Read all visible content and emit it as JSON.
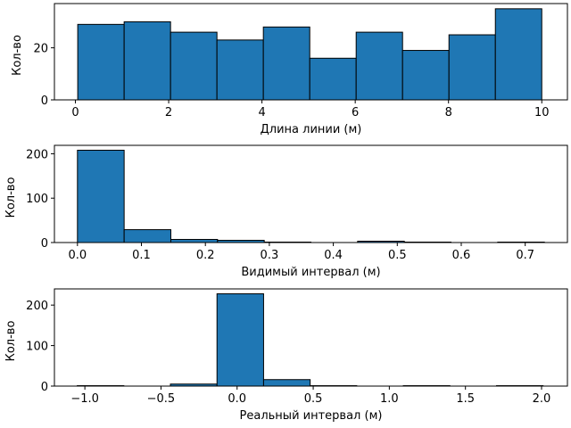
{
  "colors": {
    "bar": "#1f77b4",
    "edge": "#000000",
    "background": "#ffffff"
  },
  "chart_data": [
    {
      "type": "bar",
      "subtype": "histogram",
      "xlabel": "Длина линии (м)",
      "ylabel": "Кол-во",
      "xlim": [
        -0.45,
        10.55
      ],
      "ylim": [
        0,
        37
      ],
      "xticks": [
        0,
        2,
        4,
        6,
        8,
        10
      ],
      "xtick_labels": [
        "0",
        "2",
        "4",
        "6",
        "8",
        "10"
      ],
      "yticks": [
        0,
        20
      ],
      "ytick_labels": [
        "0",
        "20"
      ],
      "bin_edges": [
        0.05,
        1.045,
        2.04,
        3.035,
        4.03,
        5.025,
        6.02,
        7.015,
        8.01,
        9.005,
        10.0
      ],
      "values": [
        29,
        30,
        26,
        23,
        28,
        16,
        26,
        19,
        25,
        35
      ]
    },
    {
      "type": "bar",
      "subtype": "histogram",
      "xlabel": "Видимый интервал (м)",
      "ylabel": "Кол-во",
      "xlim": [
        -0.036,
        0.766
      ],
      "ylim": [
        0,
        219
      ],
      "xticks": [
        0.0,
        0.1,
        0.2,
        0.3,
        0.4,
        0.5,
        0.6,
        0.7
      ],
      "xtick_labels": [
        "0.0",
        "0.1",
        "0.2",
        "0.3",
        "0.4",
        "0.5",
        "0.6",
        "0.7"
      ],
      "yticks": [
        0,
        100,
        200
      ],
      "ytick_labels": [
        "0",
        "100",
        "200"
      ],
      "bin_edges": [
        0.0,
        0.073,
        0.146,
        0.219,
        0.292,
        0.365,
        0.438,
        0.511,
        0.584,
        0.657,
        0.73
      ],
      "values": [
        208,
        29,
        7,
        5,
        1,
        0,
        3,
        1,
        0,
        1
      ]
    },
    {
      "type": "bar",
      "subtype": "histogram",
      "xlabel": "Реальный интервал (м)",
      "ylabel": "Кол-во",
      "xlim": [
        -1.2,
        2.17
      ],
      "ylim": [
        0,
        240
      ],
      "xticks": [
        -1.0,
        -0.5,
        0.0,
        0.5,
        1.0,
        1.5,
        2.0
      ],
      "xtick_labels": [
        "−1.0",
        "−0.5",
        "0.0",
        "0.5",
        "1.0",
        "1.5",
        "2.0"
      ],
      "yticks": [
        0,
        100,
        200
      ],
      "ytick_labels": [
        "0",
        "100",
        "200"
      ],
      "bin_edges": [
        -1.05,
        -0.744,
        -0.438,
        -0.132,
        0.174,
        0.48,
        0.786,
        1.092,
        1.398,
        1.704,
        2.01
      ],
      "values": [
        1,
        0,
        5,
        228,
        16,
        1,
        0,
        1,
        0,
        1
      ]
    }
  ]
}
